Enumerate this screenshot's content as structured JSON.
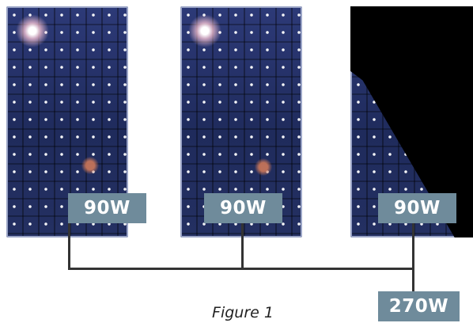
{
  "panels": [
    {
      "label": "90W",
      "shaded": false
    },
    {
      "label": "90W",
      "shaded": false
    },
    {
      "label": "90W",
      "shaded": true
    }
  ],
  "total": {
    "label": "270W"
  },
  "caption": "Figure 1",
  "colors": {
    "label_background": "#6f8b9b",
    "label_text": "#ffffff",
    "panel_cells": "#243062",
    "wire": "#333333",
    "shade": "#000000"
  }
}
